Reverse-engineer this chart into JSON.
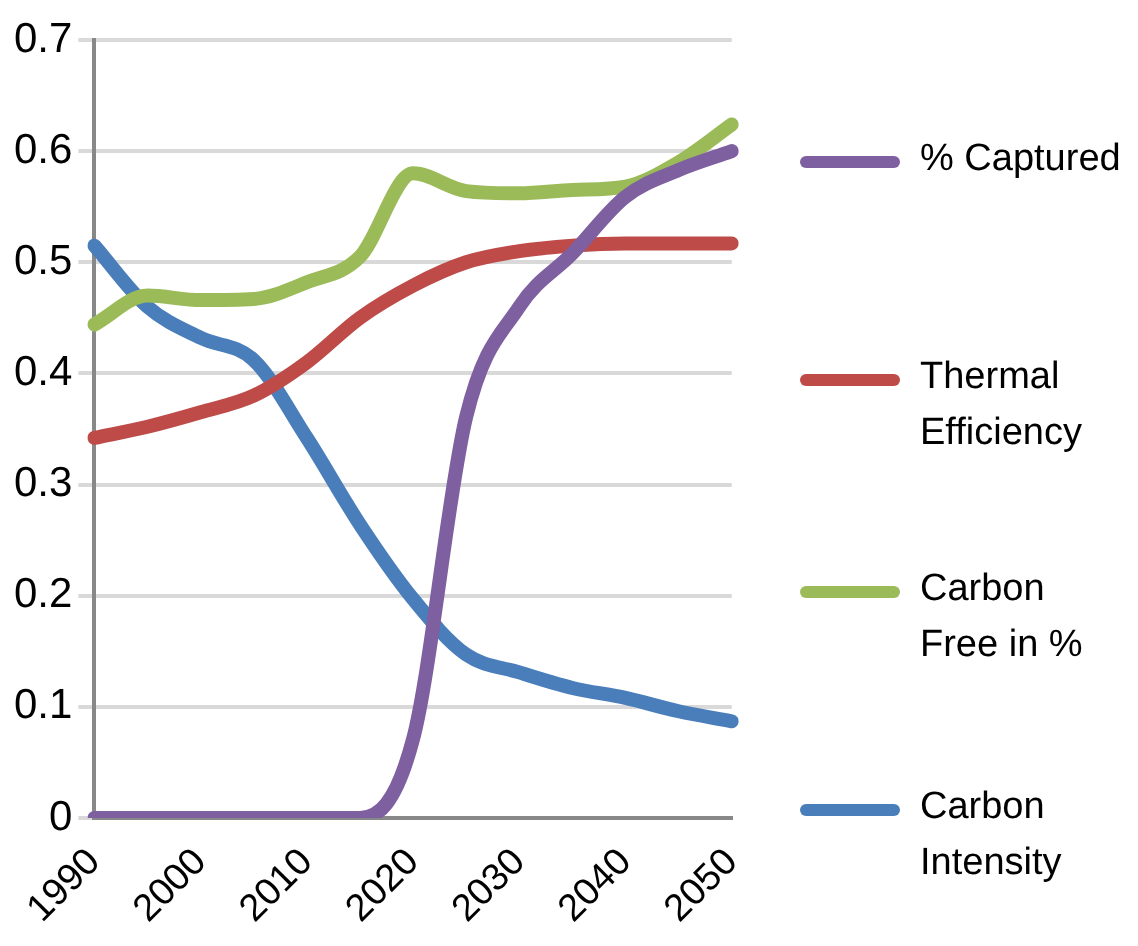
{
  "chart_data": {
    "type": "line",
    "categories": [
      "1990",
      null,
      "2000",
      null,
      "2010",
      null,
      "2020",
      null,
      "2030",
      null,
      "2040",
      null,
      "2050"
    ],
    "series": [
      {
        "name": "% Captured",
        "color": "#7e5fa0",
        "values": [
          0,
          0,
          0,
          0,
          0,
          0,
          0.071,
          0.361,
          0.46,
          0.508,
          0.559,
          0.583,
          0.6
        ]
      },
      {
        "name": "Thermal Efficiency",
        "color": "#be4b48",
        "values": [
          0.342,
          0.352,
          0.365,
          0.38,
          0.41,
          0.45,
          0.479,
          0.5,
          0.51,
          0.515,
          0.517,
          0.517,
          0.517
        ]
      },
      {
        "name": "Carbon Free in %",
        "color": "#9bbb59",
        "values": [
          0.444,
          0.47,
          0.466,
          0.467,
          0.482,
          0.505,
          0.58,
          0.564,
          0.562,
          0.565,
          0.568,
          0.59,
          0.624
        ]
      },
      {
        "name": "Carbon Intensity",
        "color": "#4a7ebb",
        "values": [
          0.515,
          0.46,
          0.432,
          0.412,
          0.342,
          0.264,
          0.197,
          0.147,
          0.131,
          0.117,
          0.108,
          0.096,
          0.087
        ]
      }
    ],
    "ylim": [
      0,
      0.7
    ],
    "yticks": [
      0,
      0.1,
      0.2,
      0.3,
      0.4,
      0.5,
      0.6,
      0.7
    ],
    "grid": "y",
    "legend": "right",
    "marker": "none",
    "line_style": "solid"
  }
}
